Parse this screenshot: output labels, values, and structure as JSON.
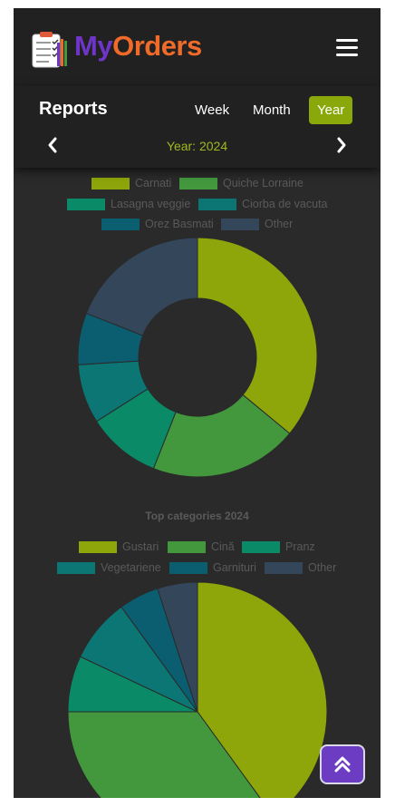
{
  "app": {
    "brand_my": "My",
    "brand_orders": "Orders"
  },
  "reports": {
    "title": "Reports",
    "periods": [
      "Week",
      "Month",
      "Year"
    ],
    "active_period": "Year",
    "year_label": "Year: 2024"
  },
  "chart_data": [
    {
      "type": "pie",
      "variant": "doughnut",
      "title": "",
      "labels": [
        "Carnati",
        "Quiche Lorraine",
        "Lasagna veggie",
        "Ciorba de vacuta",
        "Orez Basmati",
        "Other"
      ],
      "values": [
        36,
        20,
        10,
        8,
        7,
        19
      ],
      "colors": [
        "#8ea60a",
        "#43983e",
        "#0b8a68",
        "#0b7673",
        "#0a5e70",
        "#33465a"
      ],
      "legend_position": "top"
    },
    {
      "type": "pie",
      "title": "Top categories 2024",
      "labels": [
        "Gustari",
        "Cină",
        "Pranz",
        "Vegetariene",
        "Garnituri",
        "Other"
      ],
      "values": [
        40,
        35,
        7,
        8,
        5,
        5
      ],
      "colors": [
        "#8ea60a",
        "#43983e",
        "#0b8a68",
        "#0b7673",
        "#0a5e70",
        "#33465a"
      ],
      "legend_position": "top"
    }
  ]
}
